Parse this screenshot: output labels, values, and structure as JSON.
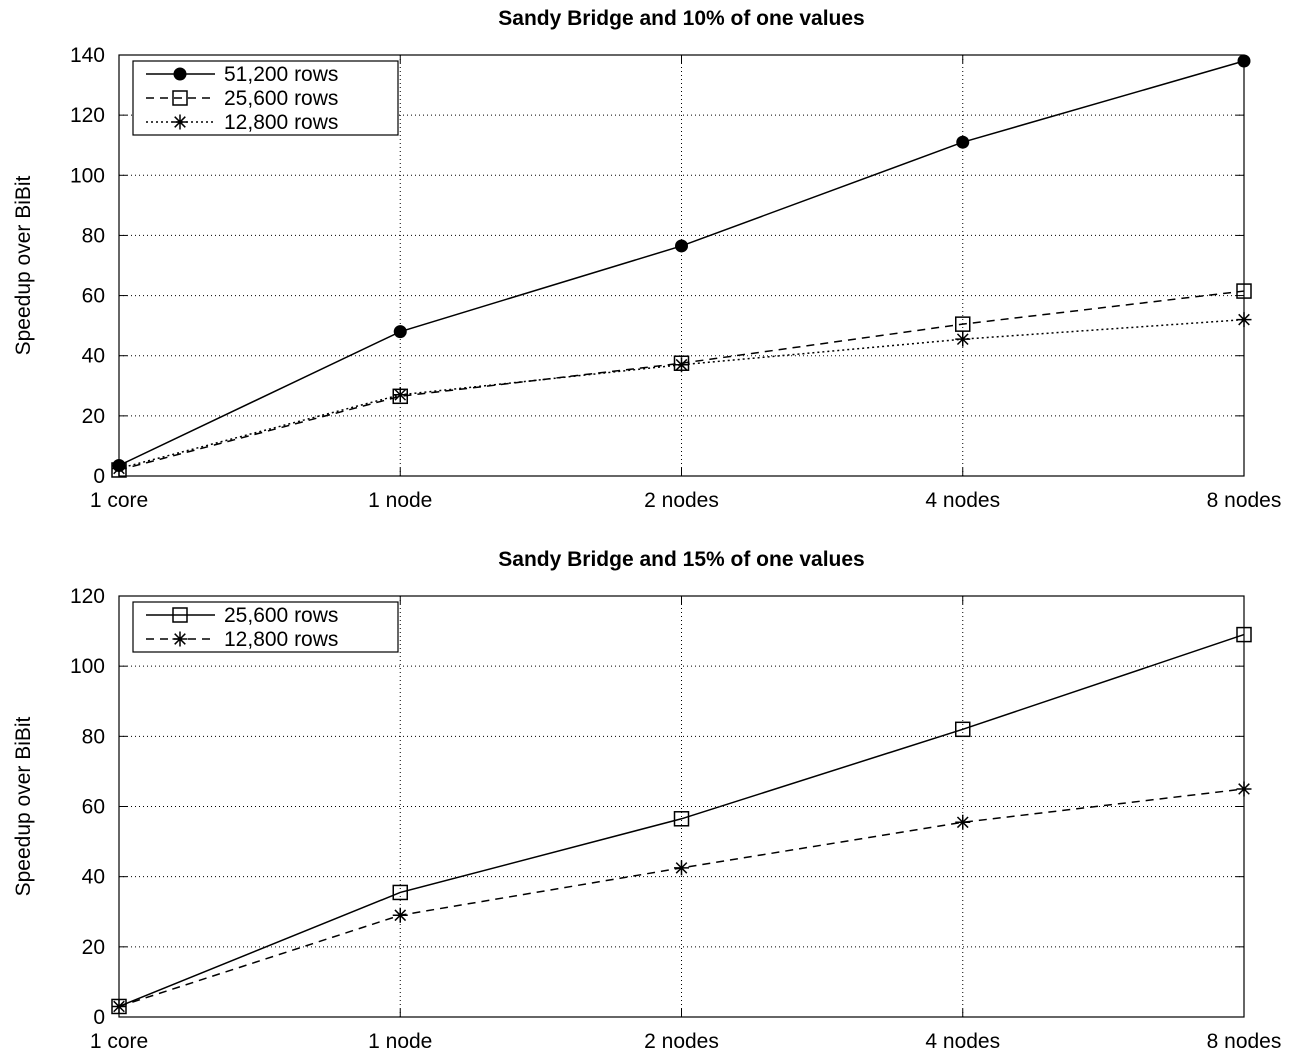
{
  "chart_data": [
    {
      "type": "line",
      "title": "Sandy Bridge and 10% of one values",
      "ylabel": "Speedup over BiBit",
      "xlabel": "",
      "categories": [
        "1 core",
        "1 node",
        "2 nodes",
        "4 nodes",
        "8 nodes"
      ],
      "ylim": [
        0,
        140
      ],
      "yticks": [
        0,
        20,
        40,
        60,
        80,
        100,
        120,
        140
      ],
      "grid": true,
      "legend_position": "top-left",
      "series": [
        {
          "name": "51,200 rows",
          "marker": "filled-circle",
          "line": "solid",
          "values": [
            3.5,
            48,
            76.5,
            111,
            138
          ]
        },
        {
          "name": "25,600 rows",
          "marker": "open-square",
          "line": "dashed",
          "values": [
            2,
            26.5,
            37.5,
            50.5,
            61.5
          ]
        },
        {
          "name": "12,800 rows",
          "marker": "asterisk",
          "line": "dotted",
          "values": [
            2.5,
            27,
            37,
            45.5,
            52
          ]
        }
      ]
    },
    {
      "type": "line",
      "title": "Sandy Bridge and 15% of one values",
      "ylabel": "Speedup over BiBit",
      "xlabel": "",
      "categories": [
        "1 core",
        "1 node",
        "2 nodes",
        "4 nodes",
        "8 nodes"
      ],
      "ylim": [
        0,
        120
      ],
      "yticks": [
        0,
        20,
        40,
        60,
        80,
        100,
        120
      ],
      "grid": true,
      "legend_position": "top-left",
      "series": [
        {
          "name": "25,600 rows",
          "marker": "open-square",
          "line": "solid",
          "values": [
            3,
            35.5,
            56.5,
            82,
            109
          ]
        },
        {
          "name": "12,800 rows",
          "marker": "asterisk",
          "line": "dashed",
          "values": [
            3,
            29,
            42.5,
            55.5,
            65
          ]
        }
      ]
    }
  ]
}
